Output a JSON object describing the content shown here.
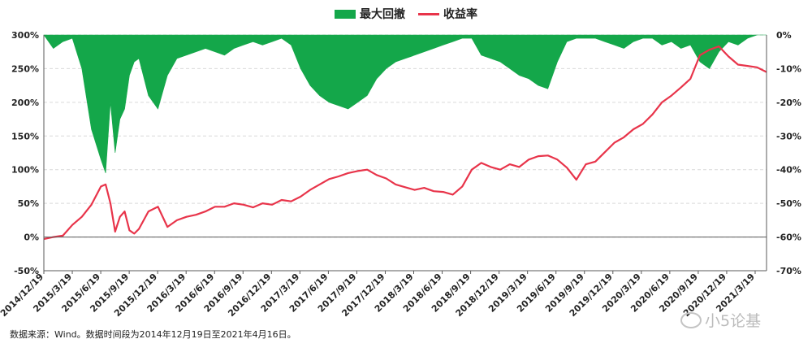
{
  "chart_data": {
    "type": "line+area",
    "legend": {
      "area_label": "最大回撤",
      "line_label": "收益率"
    },
    "colors": {
      "area": "#14a74a",
      "line": "#e8344a",
      "grid": "#d9d9d9",
      "axis": "#595959"
    },
    "left_axis": {
      "ylim": [
        -50,
        300
      ],
      "ticks": [
        "-50%",
        "0%",
        "50%",
        "100%",
        "150%",
        "200%",
        "250%",
        "300%"
      ],
      "tick_values": [
        -50,
        0,
        50,
        100,
        150,
        200,
        250,
        300
      ]
    },
    "right_axis": {
      "ylim": [
        -70,
        0
      ],
      "ticks": [
        "-70%",
        "-60%",
        "-50%",
        "-40%",
        "-30%",
        "-20%",
        "-10%",
        "0%"
      ],
      "tick_values": [
        -70,
        -60,
        -50,
        -40,
        -30,
        -20,
        -10,
        0
      ]
    },
    "x_range": [
      0,
      76
    ],
    "x_tick_labels": [
      "2014/12/19",
      "2015/3/19",
      "2015/6/19",
      "2015/9/19",
      "2015/12/19",
      "2016/3/19",
      "2016/6/19",
      "2016/9/19",
      "2016/12/19",
      "2017/3/19",
      "2017/6/19",
      "2017/9/19",
      "2017/12/19",
      "2018/3/19",
      "2018/6/19",
      "2018/9/19",
      "2018/12/19",
      "2019/3/19",
      "2019/6/19",
      "2019/9/19",
      "2019/12/19",
      "2020/3/19",
      "2020/6/19",
      "2020/9/19",
      "2020/12/19",
      "2021/3/19"
    ],
    "series": [
      {
        "name": "收益率",
        "axis": "left",
        "x": [
          0,
          1,
          2,
          3,
          4,
          5,
          6,
          6.5,
          7,
          7.5,
          8,
          8.5,
          9,
          9.5,
          10,
          11,
          12,
          13,
          14,
          15,
          16,
          17,
          18,
          19,
          20,
          21,
          22,
          23,
          24,
          25,
          26,
          27,
          28,
          29,
          30,
          31,
          32,
          33,
          34,
          35,
          36,
          37,
          38,
          39,
          40,
          41,
          42,
          43,
          44,
          45,
          46,
          47,
          48,
          49,
          50,
          51,
          52,
          53,
          54,
          55,
          56,
          57,
          58,
          59,
          60,
          61,
          62,
          63,
          64,
          65,
          66,
          67,
          68,
          69,
          70,
          71,
          72,
          73,
          74,
          75,
          76
        ],
        "values": [
          -3,
          0,
          2,
          18,
          30,
          48,
          75,
          78,
          50,
          8,
          30,
          38,
          10,
          5,
          12,
          38,
          45,
          15,
          25,
          30,
          33,
          38,
          45,
          45,
          50,
          48,
          44,
          50,
          48,
          55,
          53,
          60,
          70,
          78,
          86,
          90,
          95,
          98,
          100,
          92,
          87,
          78,
          74,
          70,
          73,
          68,
          67,
          63,
          75,
          100,
          110,
          104,
          100,
          108,
          104,
          115,
          120,
          121,
          115,
          103,
          85,
          108,
          112,
          126,
          140,
          148,
          160,
          168,
          182,
          200,
          210,
          222,
          235,
          270,
          278,
          283,
          268,
          256,
          254,
          252,
          245
        ]
      },
      {
        "name": "最大回撤",
        "axis": "right",
        "x": [
          0,
          1,
          2,
          3,
          4,
          5,
          6,
          6.5,
          7,
          7.5,
          8,
          8.5,
          9,
          9.5,
          10,
          11,
          12,
          13,
          14,
          15,
          16,
          17,
          18,
          19,
          20,
          21,
          22,
          23,
          24,
          25,
          26,
          27,
          28,
          29,
          30,
          31,
          32,
          33,
          34,
          35,
          36,
          37,
          38,
          39,
          40,
          41,
          42,
          43,
          44,
          45,
          46,
          47,
          48,
          49,
          50,
          51,
          52,
          53,
          54,
          55,
          56,
          57,
          58,
          59,
          60,
          61,
          62,
          63,
          64,
          65,
          66,
          67,
          68,
          69,
          70,
          71,
          72,
          73,
          74,
          75,
          76
        ],
        "values": [
          0,
          -4,
          -2,
          -1,
          -10,
          -28,
          -37,
          -41,
          -20,
          -35,
          -25,
          -22,
          -12,
          -8,
          -7,
          -18,
          -22,
          -12,
          -7,
          -6,
          -5,
          -4,
          -5,
          -6,
          -4,
          -3,
          -2,
          -3,
          -2,
          -1,
          -3,
          -10,
          -15,
          -18,
          -20,
          -21,
          -22,
          -20,
          -18,
          -13,
          -10,
          -8,
          -7,
          -6,
          -5,
          -4,
          -3,
          -2,
          -1,
          -1,
          -6,
          -7,
          -8,
          -10,
          -12,
          -13,
          -15,
          -16,
          -8,
          -2,
          -1,
          -1,
          -1,
          -2,
          -3,
          -4,
          -2,
          -1,
          -1,
          -3,
          -2,
          -4,
          -3,
          -8,
          -10,
          -5,
          -2,
          -3,
          -1,
          0,
          0
        ]
      }
    ],
    "source_note": "数据来源：Wind。数据时间段为2014年12月19日至2021年4月16日。",
    "watermark": "小5论基"
  }
}
